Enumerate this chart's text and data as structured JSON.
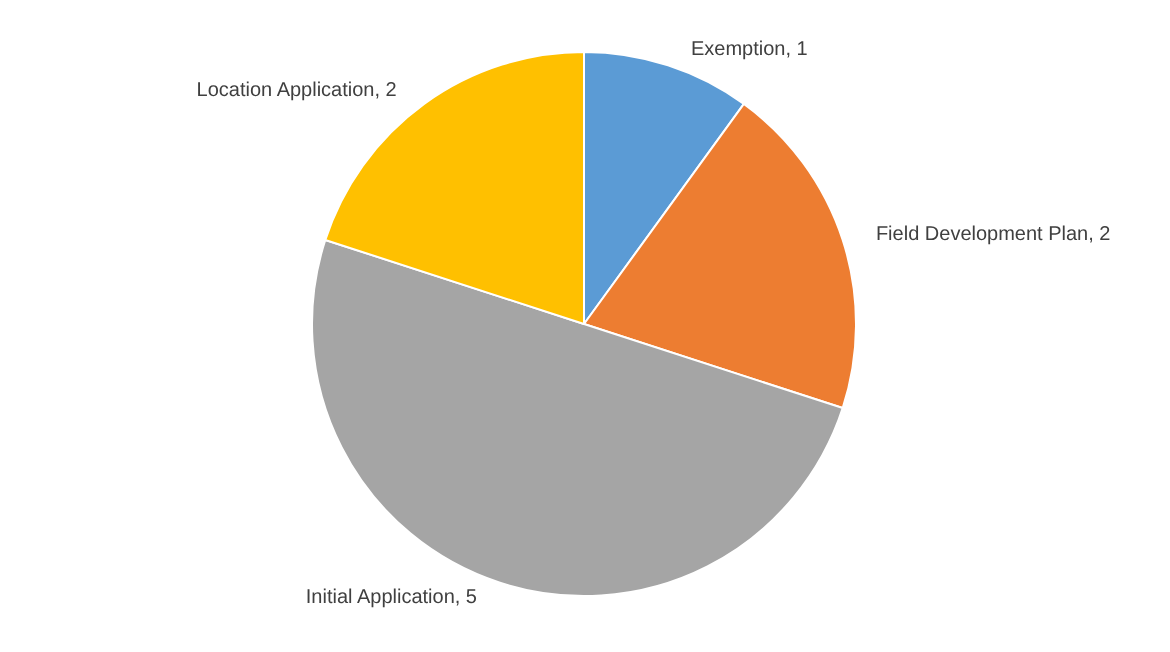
{
  "chart_data": {
    "type": "pie",
    "categories": [
      "Exemption",
      "Field Development Plan",
      "Initial Application",
      "Location Application"
    ],
    "values": [
      1,
      2,
      5,
      2
    ],
    "colors": [
      "#5b9bd5",
      "#ed7d31",
      "#a5a5a5",
      "#ffc000"
    ],
    "value_labels": [
      ", 1",
      ", 2",
      ", 5",
      ", 2"
    ],
    "legend": false
  }
}
